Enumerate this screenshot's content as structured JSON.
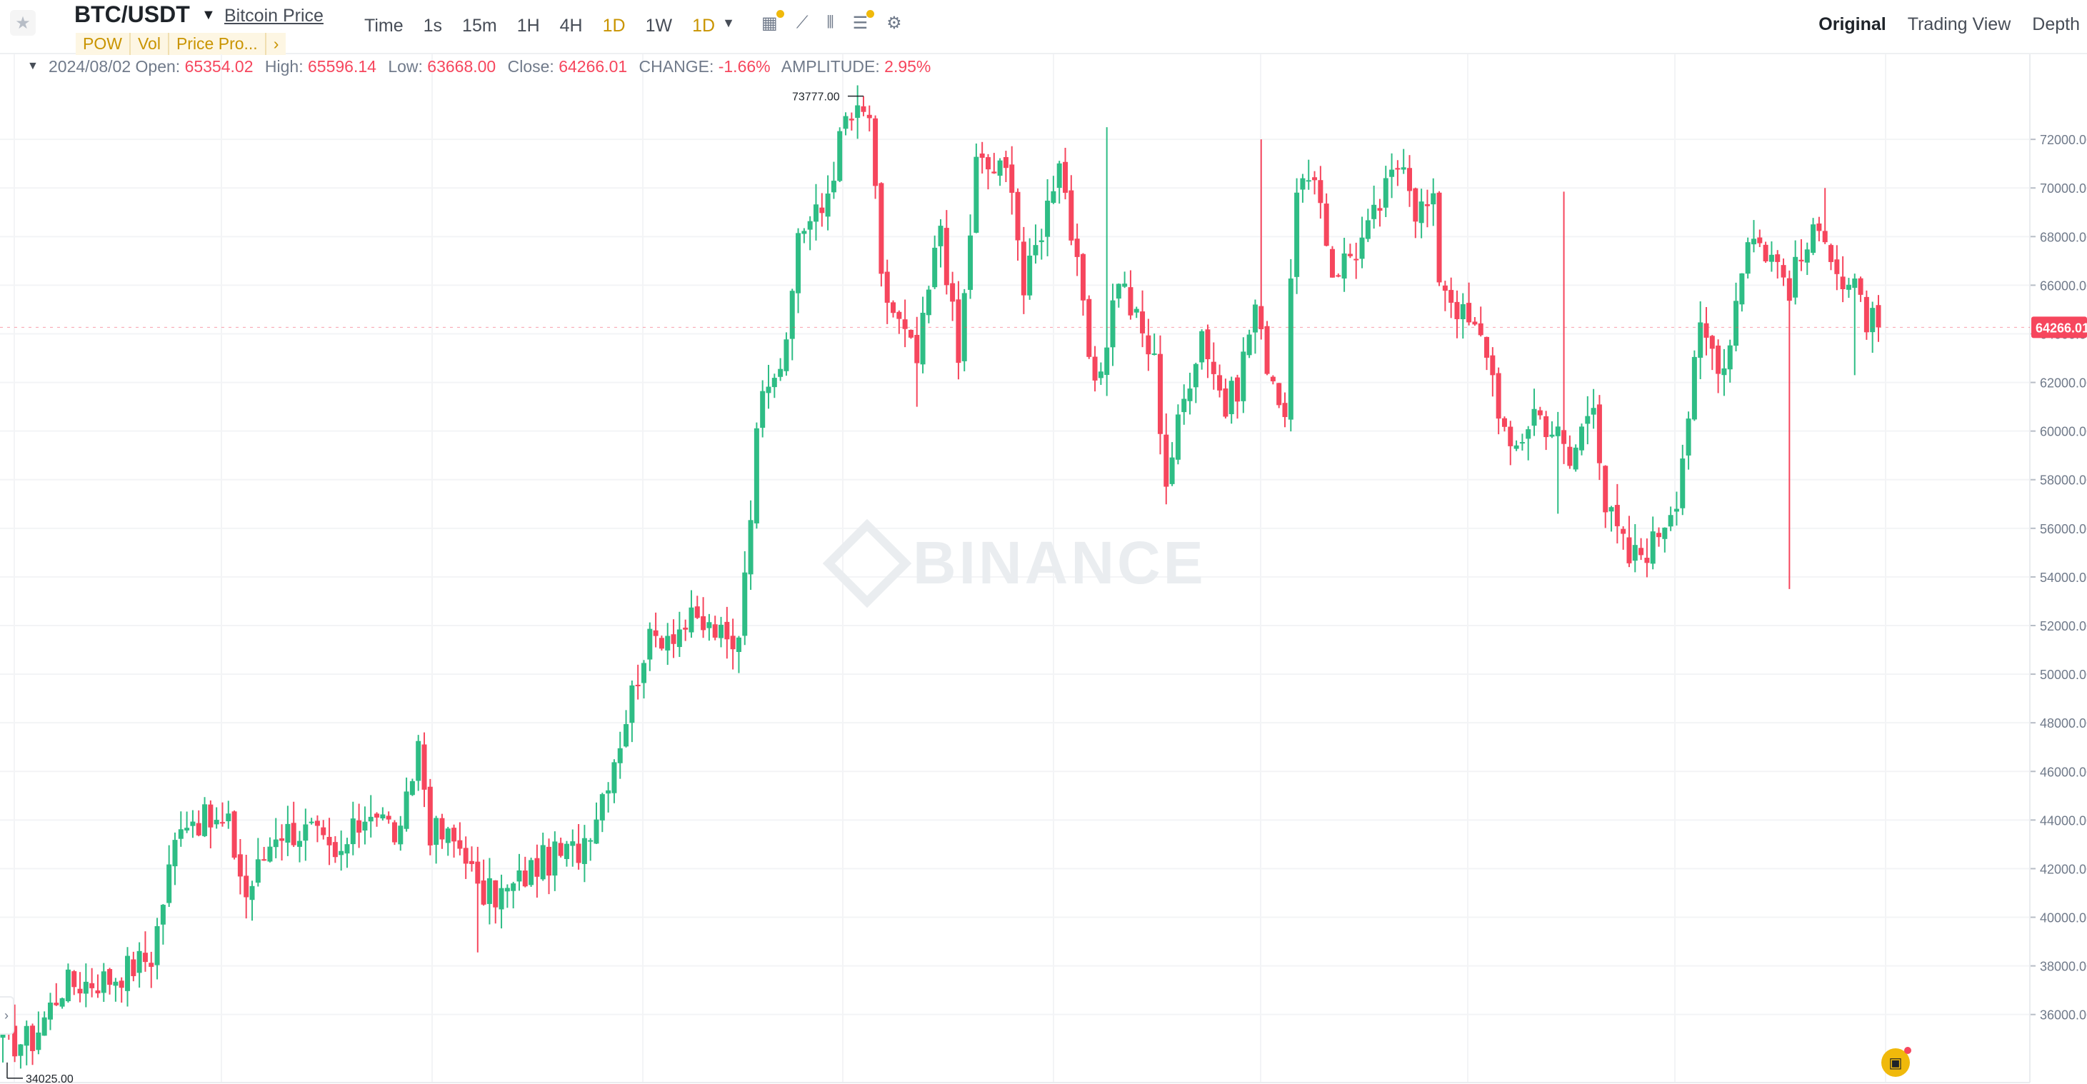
{
  "header": {
    "symbol": "BTC/USDT",
    "price_link": "Bitcoin Price",
    "tags": [
      "POW",
      "Vol",
      "Price Pro...",
      "›"
    ],
    "intervals": [
      "Time",
      "1s",
      "15m",
      "1H",
      "4H",
      "1D",
      "1W",
      "1D"
    ],
    "active_interval": "1D",
    "views": [
      "Original",
      "Trading View",
      "Depth"
    ],
    "selected_view": "Original"
  },
  "ohlc": {
    "date": "2024/08/02",
    "open_label": "Open:",
    "open": "65354.02",
    "high_label": "High:",
    "high": "65596.14",
    "low_label": "Low:",
    "low": "63668.00",
    "close_label": "Close:",
    "close": "64266.01",
    "change_label": "CHANGE:",
    "change": "-1.66%",
    "amplitude_label": "AMPLITUDE:",
    "amplitude": "2.95%"
  },
  "watermark": "BINANCE",
  "colors": {
    "up": "#2ebd85",
    "down": "#f6465d",
    "accent": "#f0b90b",
    "grid": "#f3f4f6"
  },
  "chart_data": {
    "type": "candlestick",
    "y_ticks": [
      "72000.00",
      "70000.00",
      "68000.00",
      "66000.00",
      "64000.00",
      "62000.00",
      "60000.00",
      "58000.00",
      "56000.00",
      "54000.00",
      "52000.00",
      "50000.00",
      "48000.00",
      "46000.00",
      "44000.00",
      "42000.00",
      "40000.00",
      "38000.00",
      "36000.00"
    ],
    "ylim": [
      33200,
      75500
    ],
    "last_price_label": "64266.01",
    "max_label": "73777.00",
    "min_label": "34025.00",
    "anchors": [
      [
        0,
        34800
      ],
      [
        5,
        35000
      ],
      [
        10,
        37200
      ],
      [
        18,
        37500
      ],
      [
        25,
        38400
      ],
      [
        30,
        44200
      ],
      [
        38,
        43700
      ],
      [
        41,
        40900
      ],
      [
        46,
        43600
      ],
      [
        52,
        43500
      ],
      [
        56,
        42200
      ],
      [
        62,
        44600
      ],
      [
        67,
        43200
      ],
      [
        70,
        47200
      ],
      [
        72,
        43600
      ],
      [
        78,
        42800
      ],
      [
        80,
        40900
      ],
      [
        85,
        41000
      ],
      [
        90,
        42200
      ],
      [
        97,
        42800
      ],
      [
        100,
        44400
      ],
      [
        104,
        47400
      ],
      [
        108,
        51000
      ],
      [
        111,
        51700
      ],
      [
        116,
        52100
      ],
      [
        120,
        51800
      ],
      [
        123,
        50900
      ],
      [
        124,
        51900
      ],
      [
        126,
        57000
      ],
      [
        128,
        62300
      ],
      [
        132,
        63100
      ],
      [
        134,
        68300
      ],
      [
        138,
        69000
      ],
      [
        142,
        72800
      ],
      [
        146,
        73000
      ],
      [
        148,
        66000
      ],
      [
        154,
        62800
      ],
      [
        158,
        68600
      ],
      [
        161,
        62800
      ],
      [
        164,
        71000
      ],
      [
        170,
        70500
      ],
      [
        172,
        65700
      ],
      [
        174,
        67500
      ],
      [
        176,
        69300
      ],
      [
        178,
        71500
      ],
      [
        181,
        66500
      ],
      [
        184,
        61400
      ],
      [
        188,
        66500
      ],
      [
        190,
        65100
      ],
      [
        194,
        62800
      ],
      [
        196,
        58000
      ],
      [
        200,
        62400
      ],
      [
        202,
        64200
      ],
      [
        206,
        60900
      ],
      [
        208,
        61900
      ],
      [
        211,
        65200
      ],
      [
        212,
        63700
      ],
      [
        216,
        60800
      ],
      [
        218,
        70400
      ],
      [
        222,
        69400
      ],
      [
        224,
        66600
      ],
      [
        228,
        67500
      ],
      [
        230,
        68200
      ],
      [
        234,
        70400
      ],
      [
        236,
        71500
      ],
      [
        238,
        69200
      ],
      [
        241,
        69200
      ],
      [
        242,
        66500
      ],
      [
        246,
        64700
      ],
      [
        250,
        63400
      ],
      [
        254,
        58800
      ],
      [
        258,
        60900
      ],
      [
        262,
        59800
      ],
      [
        264,
        58600
      ],
      [
        268,
        61600
      ],
      [
        270,
        56900
      ],
      [
        274,
        54700
      ],
      [
        278,
        55400
      ],
      [
        282,
        57500
      ],
      [
        286,
        64100
      ],
      [
        290,
        62700
      ],
      [
        294,
        68200
      ],
      [
        298,
        67200
      ],
      [
        301,
        66000
      ],
      [
        304,
        67600
      ],
      [
        307,
        68400
      ],
      [
        310,
        66000
      ],
      [
        312,
        65700
      ],
      [
        314,
        64600
      ],
      [
        316,
        64266
      ]
    ],
    "notable_highs": [
      [
        145,
        73777
      ],
      [
        263,
        69850
      ],
      [
        307,
        70000
      ],
      [
        212,
        72000
      ],
      [
        186,
        72500
      ]
    ],
    "notable_lows": [
      [
        0,
        34025
      ],
      [
        80,
        38555
      ],
      [
        154,
        61000
      ],
      [
        262,
        56600
      ],
      [
        301,
        53500
      ],
      [
        312,
        62300
      ]
    ]
  }
}
